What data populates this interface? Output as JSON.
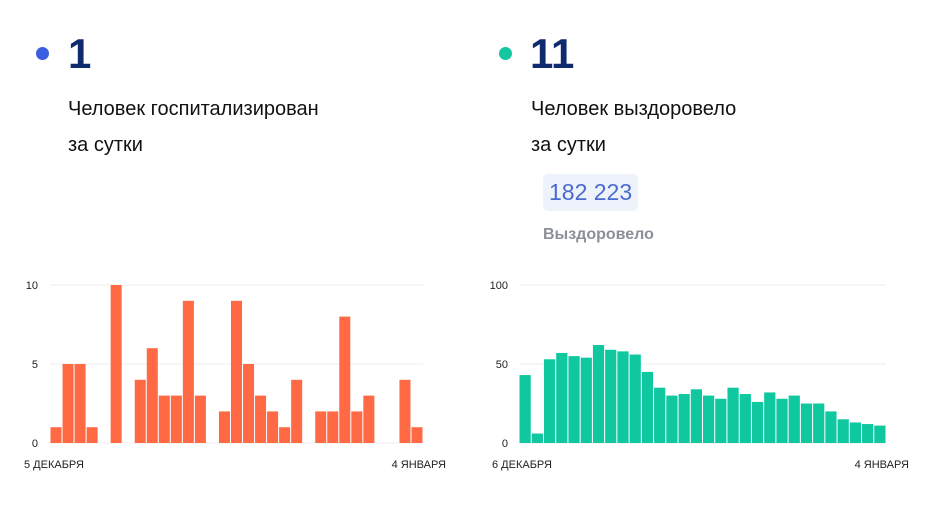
{
  "panels": [
    {
      "number": "1",
      "caption_line1": "Человек госпитализирован",
      "caption_line2": "за сутки",
      "dot_color": "#3b5fe0"
    },
    {
      "number": "11",
      "caption_line1": "Человек выздоровело",
      "caption_line2": "за сутки",
      "dot_color": "#15c7a0",
      "total_value": "182 223",
      "total_label": "Выздоровело"
    }
  ],
  "chart_data": [
    {
      "type": "bar",
      "color": "#ff6a45",
      "ylim": [
        0,
        10
      ],
      "yticks": [
        0,
        5,
        10
      ],
      "x_start_label": "5 ДЕКАБРЯ",
      "x_end_label": "4 ЯНВАРЯ",
      "values": [
        1,
        5,
        5,
        1,
        0,
        10,
        0,
        4,
        6,
        3,
        3,
        9,
        3,
        0,
        2,
        9,
        5,
        3,
        2,
        1,
        4,
        0,
        2,
        2,
        8,
        2,
        3,
        0,
        0,
        4,
        1
      ]
    },
    {
      "type": "bar",
      "color": "#10c8a0",
      "ylim": [
        0,
        100
      ],
      "yticks": [
        0,
        50,
        100
      ],
      "x_start_label": "6 ДЕКАБРЯ",
      "x_end_label": "4 ЯНВАРЯ",
      "values": [
        43,
        6,
        53,
        57,
        55,
        54,
        62,
        59,
        58,
        56,
        45,
        35,
        30,
        31,
        34,
        30,
        28,
        35,
        31,
        26,
        32,
        28,
        30,
        25,
        25,
        20,
        15,
        13,
        12,
        11
      ]
    }
  ]
}
